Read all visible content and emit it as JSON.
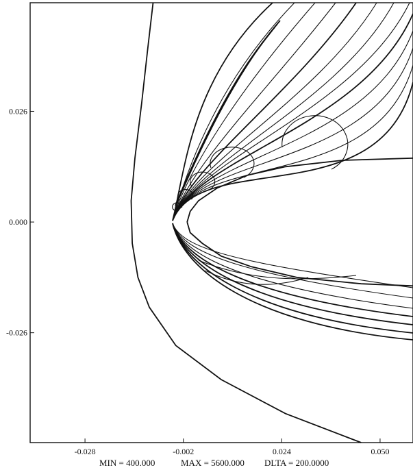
{
  "chart_data": {
    "type": "contour",
    "title": "",
    "xlabel": "",
    "ylabel": "",
    "xlim": [
      -0.0425,
      0.0587
    ],
    "ylim": [
      -0.0518,
      0.0515
    ],
    "x_ticks": [
      {
        "value": -0.028,
        "label": "-0.028"
      },
      {
        "value": -0.002,
        "label": "-0.002"
      },
      {
        "value": 0.024,
        "label": "0.024"
      },
      {
        "value": 0.05,
        "label": "0.050"
      }
    ],
    "y_ticks": [
      {
        "value": 0.026,
        "label": "0.026"
      },
      {
        "value": 0.0,
        "label": "0.000"
      },
      {
        "value": -0.026,
        "label": "-0.026"
      }
    ],
    "contour_levels": {
      "min": 400,
      "max": 5600,
      "delta": 200,
      "min_label": "MIN = 400.000",
      "max_label": "MAX = 5600.000",
      "delta_label": "DLTA = 200.0000"
    },
    "grid": false,
    "legend": "none",
    "line_color": "#111111",
    "background_color": "#ffffff",
    "shock_line": [
      [
        -0.01,
        0.0515
      ],
      [
        -0.0115,
        0.04
      ],
      [
        -0.013,
        0.028
      ],
      [
        -0.0148,
        0.015
      ],
      [
        -0.0158,
        0.005
      ],
      [
        -0.0155,
        -0.005
      ],
      [
        -0.014,
        -0.013
      ],
      [
        -0.011,
        -0.02
      ],
      [
        -0.004,
        -0.029
      ],
      [
        0.008,
        -0.037
      ],
      [
        0.025,
        -0.045
      ],
      [
        0.045,
        -0.0518
      ]
    ],
    "body_upper": [
      [
        -0.001,
        0.0
      ],
      [
        -0.0002,
        0.0025
      ],
      [
        0.002,
        0.005
      ],
      [
        0.007,
        0.008
      ],
      [
        0.015,
        0.011
      ],
      [
        0.025,
        0.013
      ],
      [
        0.04,
        0.0145
      ],
      [
        0.0587,
        0.015
      ]
    ],
    "body_lower": [
      [
        -0.001,
        0.0
      ],
      [
        -0.0002,
        -0.0025
      ],
      [
        0.003,
        -0.005
      ],
      [
        0.008,
        -0.008
      ],
      [
        0.016,
        -0.0105
      ],
      [
        0.028,
        -0.013
      ],
      [
        0.045,
        -0.0145
      ],
      [
        0.0587,
        -0.015
      ]
    ]
  }
}
